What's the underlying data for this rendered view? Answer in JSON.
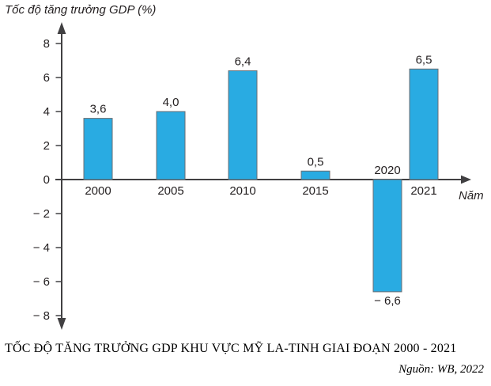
{
  "page": {
    "background": "#ffffff"
  },
  "chart_data": {
    "type": "bar",
    "title": "TỐC ĐỘ TĂNG TRƯỞNG GDP KHU VỰC MỸ LA-TINH GIAI ĐOẠN 2000 - 2021",
    "source": "Nguồn: WB, 2022",
    "y_axis_title": "Tốc độ tăng trưởng GDP (%)",
    "x_axis_title": "Năm",
    "categories": [
      "2000",
      "2005",
      "2010",
      "2015",
      "2020",
      "2021"
    ],
    "values": [
      3.6,
      4.0,
      6.4,
      0.5,
      -6.6,
      6.5
    ],
    "value_labels": [
      "3,6",
      "4,0",
      "6,4",
      "0,5",
      "− 6,6",
      "6,5"
    ],
    "ylim": [
      -8,
      8
    ],
    "y_ticks": [
      8,
      6,
      4,
      2,
      0,
      -2,
      -4,
      -6,
      -8
    ],
    "y_tick_labels": [
      "8",
      "6",
      "4",
      "2",
      "0",
      "− 2",
      "− 4",
      "− 6",
      "− 8"
    ],
    "grid": false,
    "legend": "none",
    "colors": {
      "bar_fill": "#29abe2",
      "bar_border": "#6d6e71",
      "axis": "#414042",
      "text": "#231f20"
    }
  }
}
